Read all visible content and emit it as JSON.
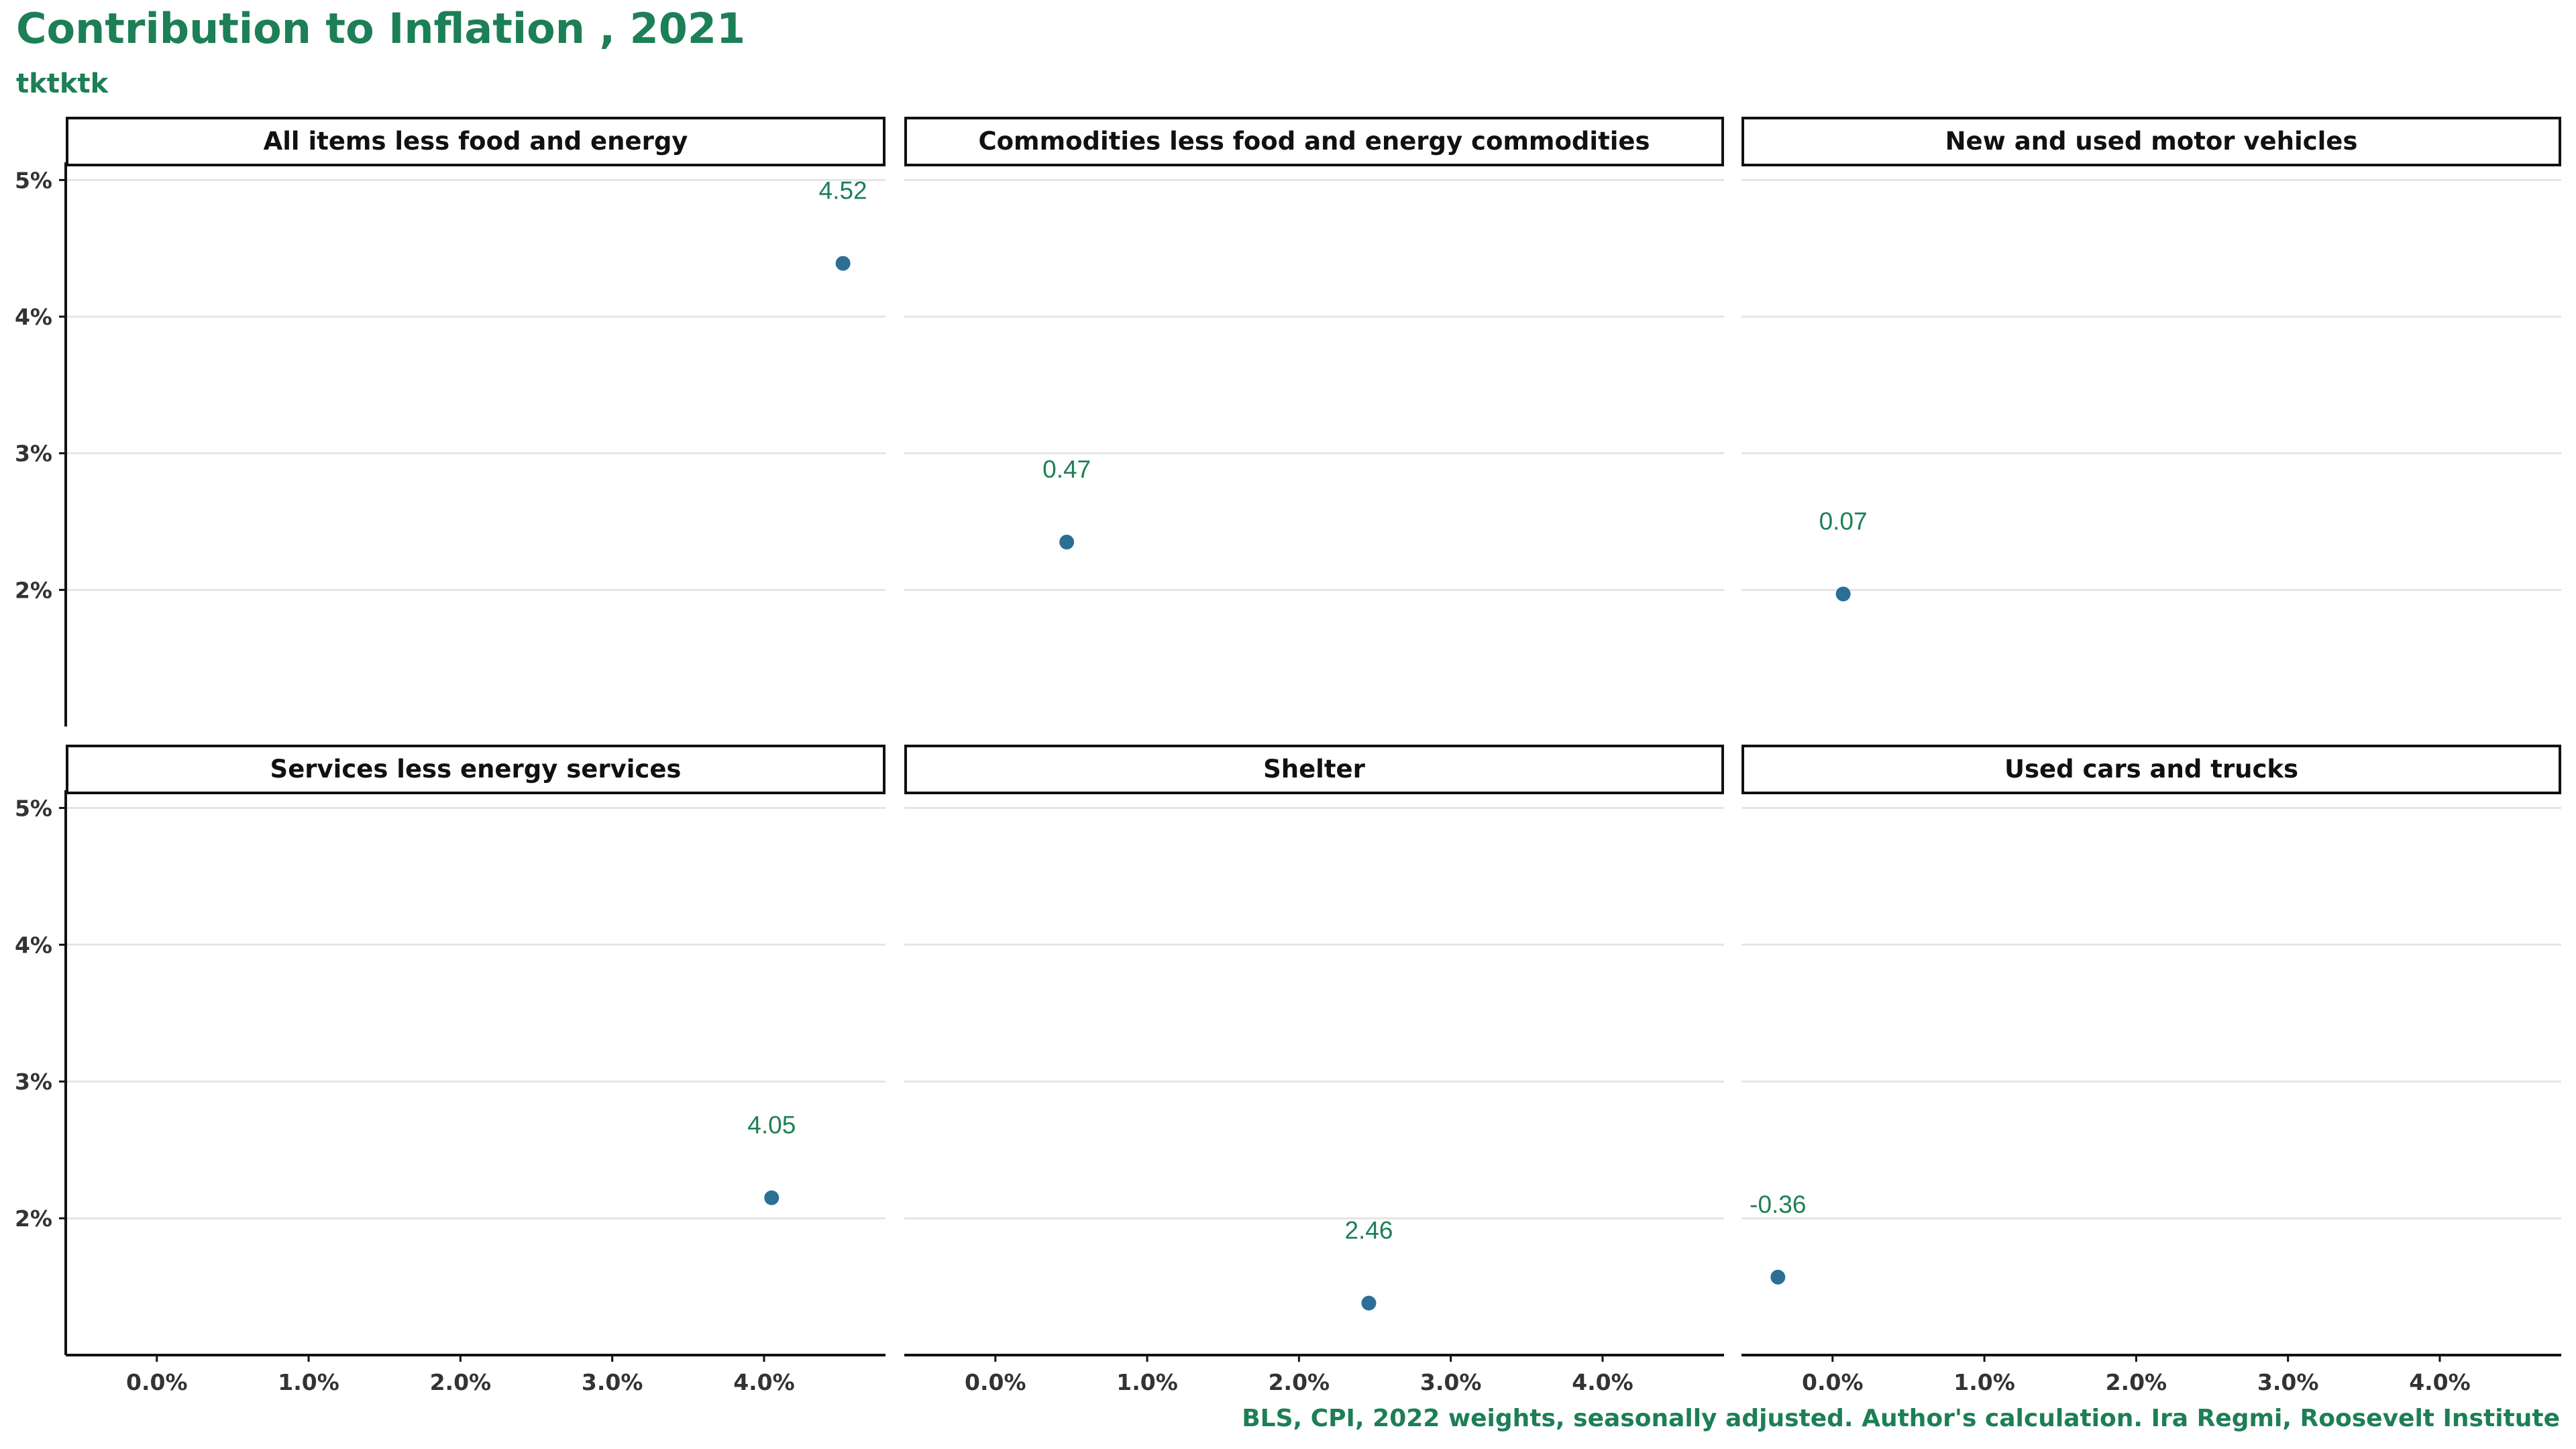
{
  "colors": {
    "accent": "#1d7f55",
    "point": "#2c6f96",
    "grid": "#e4e4e4",
    "axis": "#111111",
    "tick_text": "#333333"
  },
  "chart_data": {
    "type": "scatter",
    "title": "Contribution to Inflation , 2021",
    "subtitle": "tktktk",
    "caption": "BLS, CPI, 2022 weights, seasonally adjusted. Author's calculation. Ira Regmi, Roosevelt Institute",
    "xlabel": "",
    "ylabel": "",
    "xlim": [
      -0.6,
      4.8
    ],
    "ylim": [
      1.0,
      5.1
    ],
    "x_ticks": [
      "0.0%",
      "1.0%",
      "2.0%",
      "3.0%",
      "4.0%"
    ],
    "y_ticks": [
      "2%",
      "3%",
      "4%",
      "5%"
    ],
    "grid": true,
    "facets": [
      {
        "name": "All items less food and energy",
        "x": 4.52,
        "y": 4.39,
        "label": "4.52"
      },
      {
        "name": "Commodities less food and energy commodities",
        "x": 0.47,
        "y": 2.35,
        "label": "0.47"
      },
      {
        "name": "New and used motor vehicles",
        "x": 0.07,
        "y": 1.97,
        "label": "0.07"
      },
      {
        "name": "Services less energy services",
        "x": 4.05,
        "y": 2.15,
        "label": "4.05"
      },
      {
        "name": "Shelter",
        "x": 2.46,
        "y": 1.38,
        "label": "2.46"
      },
      {
        "name": "Used cars and trucks",
        "x": -0.36,
        "y": 1.57,
        "label": "-0.36"
      }
    ]
  }
}
